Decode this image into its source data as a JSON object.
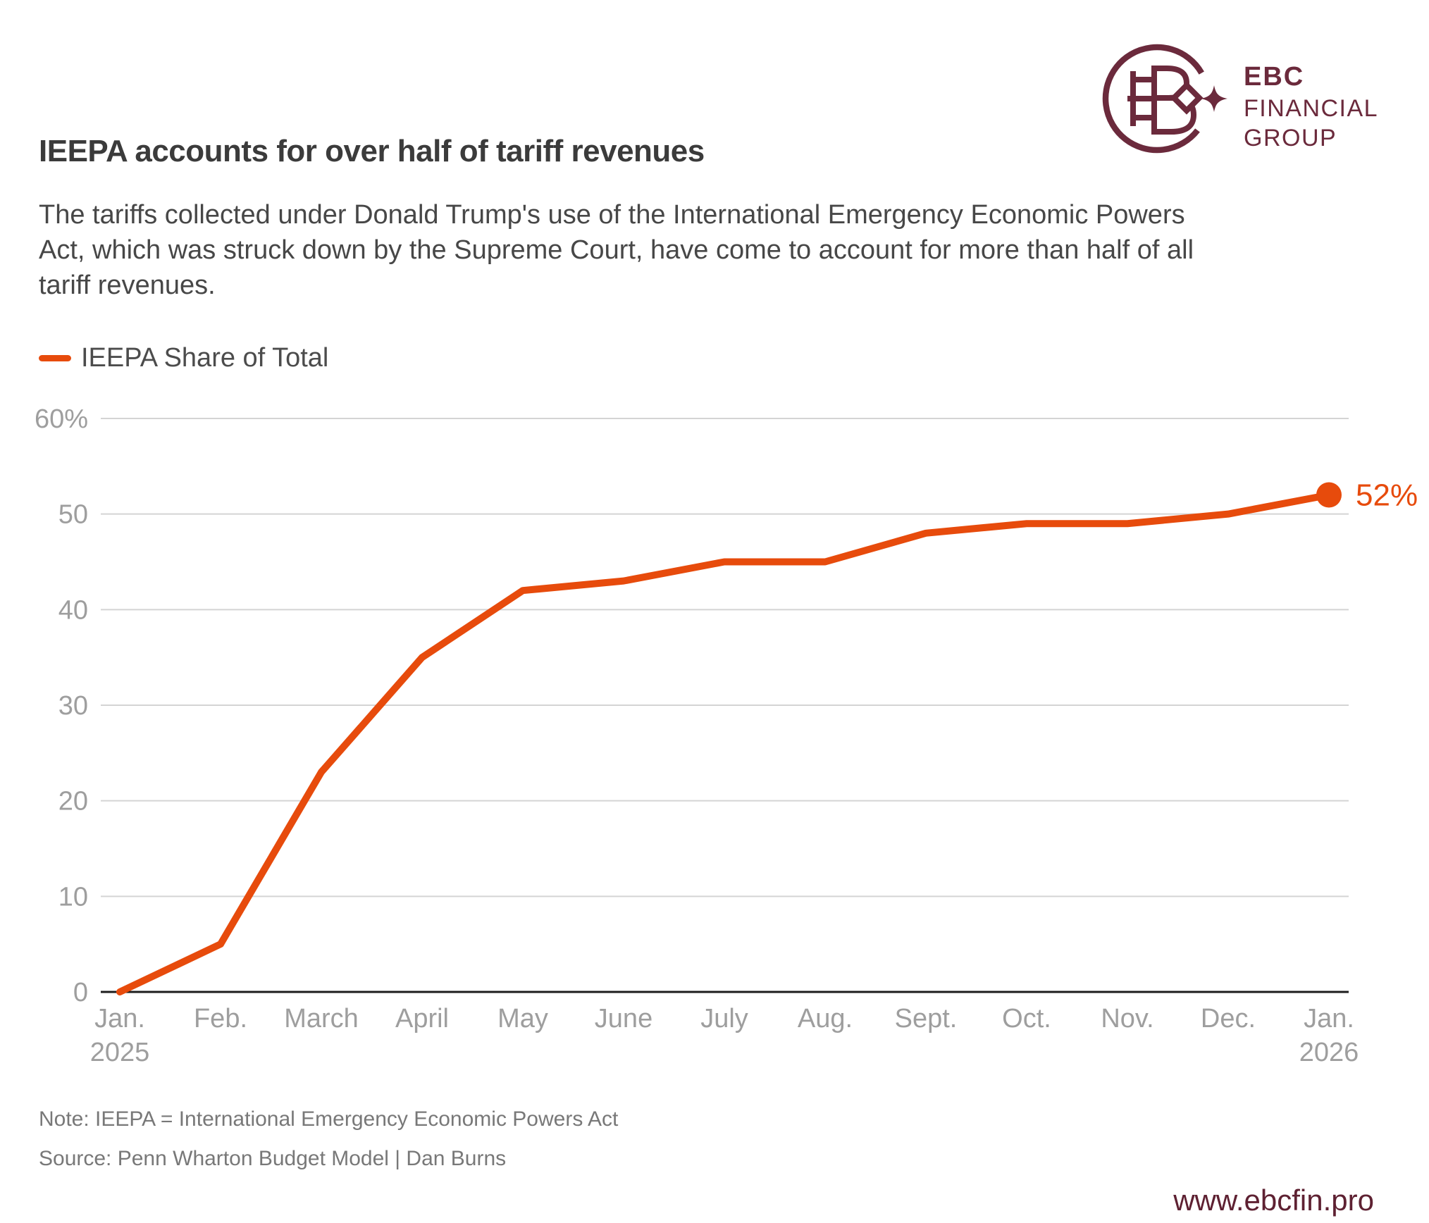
{
  "header": {
    "title": "IEEPA accounts for over half of tariff revenues",
    "subtitle_lines": [
      "The tariffs collected under Donald Trump's use of the International Emergency Economic Powers",
      "Act, which was struck down by the Supreme Court, have come to account for more than half of all",
      "tariff revenues."
    ]
  },
  "logo": {
    "line1": "EBC",
    "line2": "FINANCIAL",
    "line3": "GROUP",
    "color": "#6b2a3c"
  },
  "legend": {
    "label": "IEEPA Share of Total"
  },
  "chart_data": {
    "type": "line",
    "title": "IEEPA accounts for over half of tariff revenues",
    "categories": [
      "Jan.",
      "Feb.",
      "March",
      "April",
      "May",
      "June",
      "July",
      "Aug.",
      "Sept.",
      "Oct.",
      "Nov.",
      "Dec.",
      "Jan."
    ],
    "x_sub_labels": {
      "0": "2025",
      "12": "2026"
    },
    "series": [
      {
        "name": "IEEPA Share of Total",
        "values": [
          0,
          5,
          23,
          35,
          42,
          43,
          45,
          45,
          48,
          49,
          49,
          50,
          52
        ]
      }
    ],
    "ylim": [
      0,
      60
    ],
    "y_ticks": [
      0,
      10,
      20,
      30,
      40,
      50,
      60
    ],
    "y_top_tick_label": "60%",
    "end_label": "52%",
    "line_color": "#e74b0c",
    "grid": "on",
    "gridline_color": "#d4d4d4",
    "axis_color": "#1c1c1c",
    "tick_label_color": "#9e9e9e",
    "legend_position": "top-left",
    "xlabel": "",
    "ylabel": ""
  },
  "footer": {
    "note": "Note: IEEPA = International Emergency Economic Powers Act",
    "source": "Source: Penn Wharton Budget Model | Dan Burns",
    "website": "www.ebcfin.pro"
  }
}
